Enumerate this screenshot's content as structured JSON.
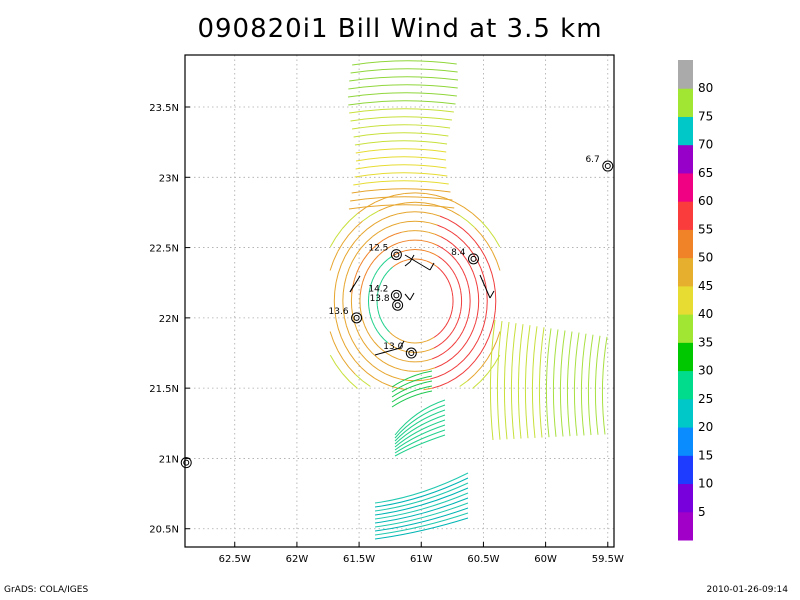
{
  "title": "090820i1 Bill Wind at 3.5 km",
  "footer_left": "GrADS: COLA/IGES",
  "footer_right": "2010-01-26-09:14",
  "map": {
    "lon_range": [
      -62.9,
      -59.45
    ],
    "lat_range": [
      20.37,
      23.87
    ],
    "x_ticks": [
      {
        "lon": -62.5,
        "label": "62.5W"
      },
      {
        "lon": -62.0,
        "label": "62W"
      },
      {
        "lon": -61.5,
        "label": "61.5W"
      },
      {
        "lon": -61.0,
        "label": "61W"
      },
      {
        "lon": -60.5,
        "label": "60.5W"
      },
      {
        "lon": -60.0,
        "label": "60W"
      },
      {
        "lon": -59.5,
        "label": "59.5W"
      }
    ],
    "y_ticks": [
      {
        "lat": 20.5,
        "label": "20.5N"
      },
      {
        "lat": 21.0,
        "label": "21N"
      },
      {
        "lat": 21.5,
        "label": "21.5N"
      },
      {
        "lat": 22.0,
        "label": "22N"
      },
      {
        "lat": 22.5,
        "label": "22.5N"
      },
      {
        "lat": 23.0,
        "label": "23N"
      },
      {
        "lat": 23.5,
        "label": "23.5N"
      }
    ],
    "center": {
      "lon": -61.05,
      "lat": 22.12
    },
    "stations": [
      {
        "label": "12.5",
        "lon": -61.2,
        "lat": 22.45
      },
      {
        "label": "8.4",
        "lon": -60.58,
        "lat": 22.42
      },
      {
        "label": "14.2",
        "lon": -61.2,
        "lat": 22.16
      },
      {
        "label": "13.8",
        "lon": -61.19,
        "lat": 22.09
      },
      {
        "label": "13.6",
        "lon": -61.52,
        "lat": 22.0
      },
      {
        "label": "13.0",
        "lon": -61.08,
        "lat": 21.75
      },
      {
        "label": "6.7",
        "lon": -59.5,
        "lat": 23.08
      },
      {
        "label": "",
        "lon": -62.89,
        "lat": 20.97
      }
    ]
  },
  "colorbar": {
    "labels": [
      "5",
      "10",
      "15",
      "20",
      "25",
      "30",
      "35",
      "40",
      "45",
      "50",
      "55",
      "60",
      "65",
      "70",
      "75",
      "80"
    ],
    "colors": [
      "#a000c8",
      "#7800dc",
      "#1e3cff",
      "#0a8cff",
      "#00c8c8",
      "#00dc8c",
      "#00c800",
      "#a0e632",
      "#e6dc32",
      "#e6af2d",
      "#f08228",
      "#fa3c3c",
      "#f00082",
      "#9600c8",
      "#00c8c8",
      "#a0e632",
      "#aaaaaa"
    ]
  }
}
